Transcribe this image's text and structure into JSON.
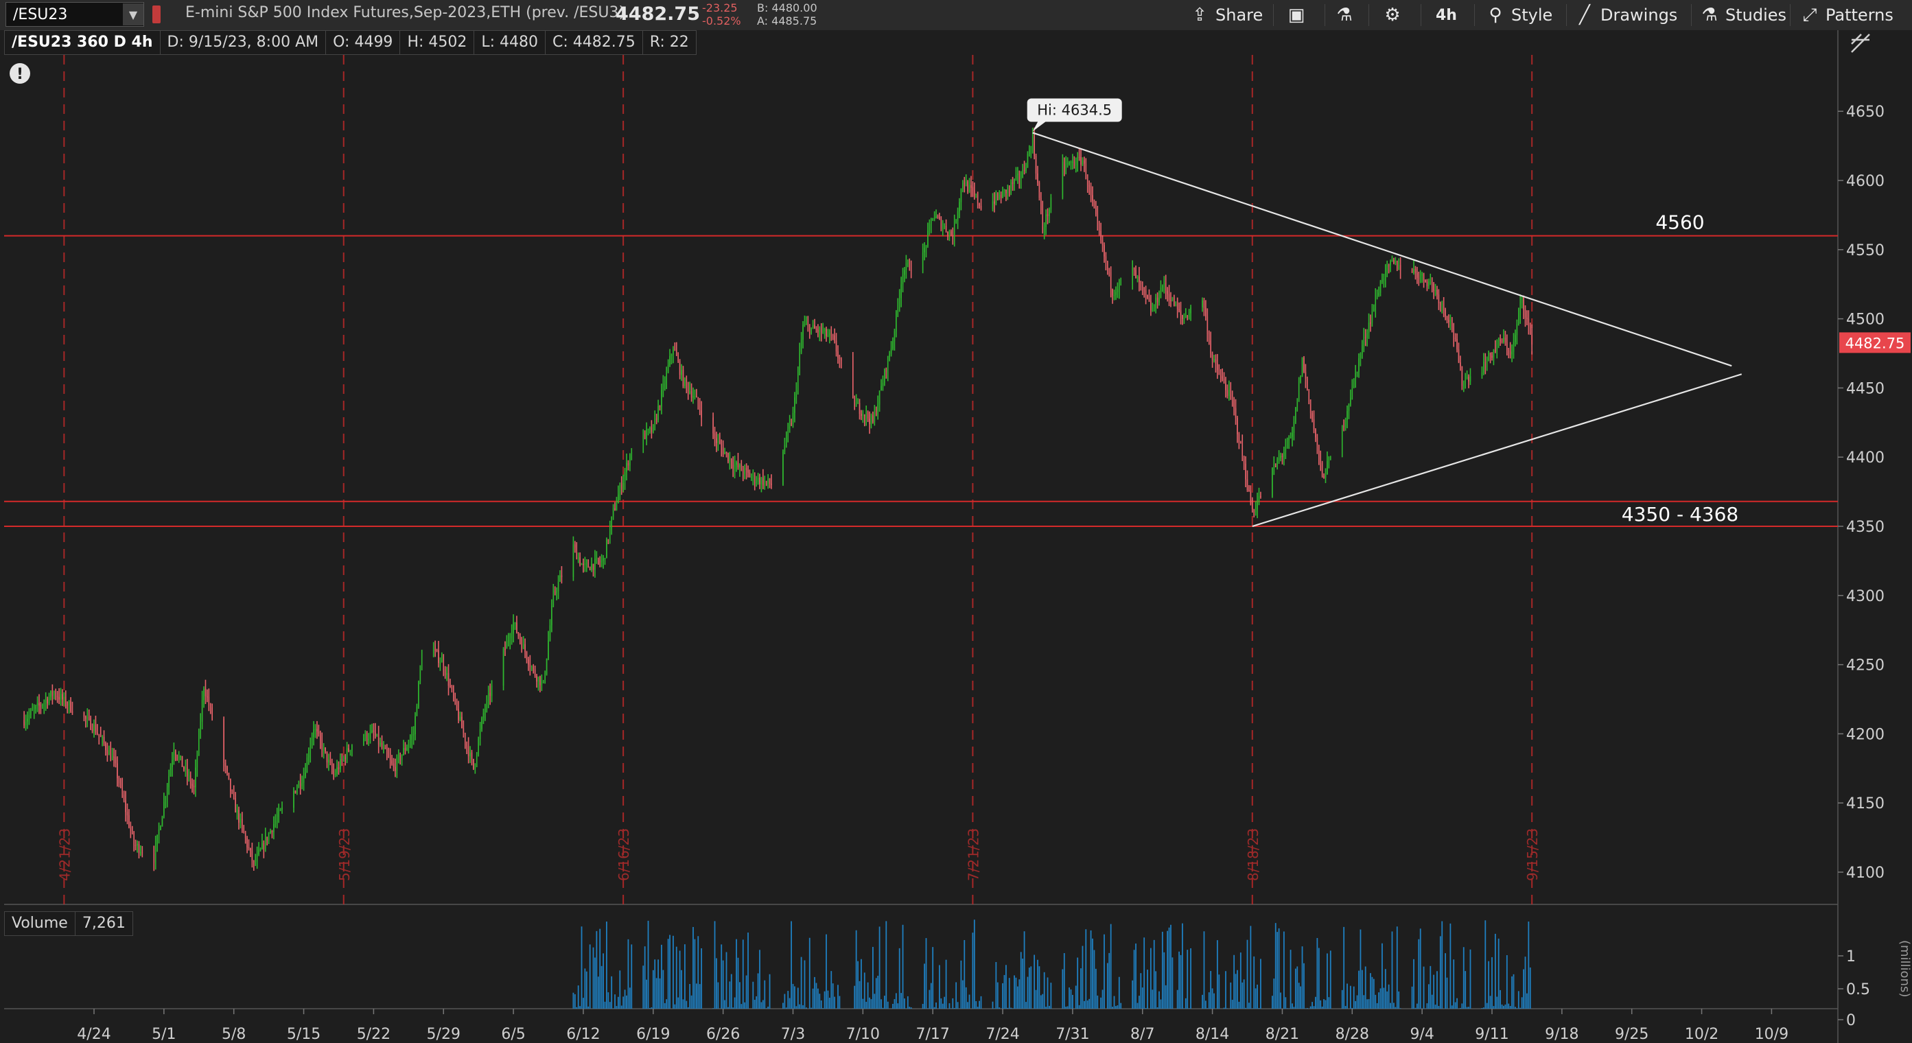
{
  "header": {
    "symbol": "/ESU23",
    "description": "E-mini S&P 500 Index Futures,Sep-2023,ETH (prev. /ESU3)",
    "last_price": "4482.75",
    "change": "-23.25",
    "change_pct": "-0.52%",
    "bid": "B: 4480.00",
    "ask": "A: 4485.75",
    "toolbar": {
      "share": "Share",
      "timeframe": "4h",
      "style": "Style",
      "drawings": "Drawings",
      "studies": "Studies",
      "patterns": "Patterns"
    }
  },
  "info_bar": {
    "title": "/ESU23 360 D 4h",
    "date": "D: 9/15/23, 8:00 AM",
    "open": "O: 4499",
    "high": "H: 4502",
    "low": "L: 4480",
    "close": "C: 4482.75",
    "range": "R: 22"
  },
  "volume_bar": {
    "label": "Volume",
    "value": "7,261"
  },
  "colors": {
    "up": "#2fb82f",
    "down": "#e8636a",
    "level": "#d42a2a",
    "trend": "#e6e6e6",
    "volume": "#1f7fc0",
    "price_tag": "#e8464c"
  },
  "chart_data": {
    "type": "candlestick",
    "ylim": [
      4075,
      4670
    ],
    "yticks": [
      4100,
      4150,
      4200,
      4250,
      4300,
      4350,
      4400,
      4450,
      4500,
      4550,
      4600,
      4650
    ],
    "xticks": [
      "4/24",
      "5/1",
      "5/8",
      "5/15",
      "5/22",
      "5/29",
      "6/5",
      "6/12",
      "6/19",
      "6/26",
      "7/3",
      "7/10",
      "7/17",
      "7/24",
      "7/31",
      "8/7",
      "8/14",
      "8/21",
      "8/28",
      "9/4",
      "9/11",
      "9/18",
      "9/25",
      "10/2",
      "10/9"
    ],
    "expiration_markers": [
      "4/21/23",
      "5/19/23",
      "6/16/23",
      "7/21/23",
      "8/18/23",
      "9/15/23"
    ],
    "horizontal_levels": [
      {
        "value": 4560,
        "label": "4560"
      },
      {
        "value": 4368,
        "label": "4350 - 4368"
      },
      {
        "value": 4350,
        "label": ""
      }
    ],
    "high_label": "Hi: 4634.5",
    "last_value": 4482.75,
    "last_label": "4482.75",
    "trendlines": [
      {
        "from": [
          "7/27",
          4634.5
        ],
        "to": [
          "10/5",
          4466
        ]
      },
      {
        "from": [
          "8/18",
          4350
        ],
        "to": [
          "10/6",
          4460
        ]
      }
    ],
    "price_path": [
      [
        "4/17",
        4210
      ],
      [
        "4/20",
        4230
      ],
      [
        "4/24",
        4205
      ],
      [
        "4/26",
        4180
      ],
      [
        "4/28",
        4120
      ],
      [
        "4/30",
        4110
      ],
      [
        "5/2",
        4190
      ],
      [
        "5/4",
        4160
      ],
      [
        "5/5",
        4235
      ],
      [
        "5/8",
        4150
      ],
      [
        "5/10",
        4105
      ],
      [
        "5/12",
        4135
      ],
      [
        "5/15",
        4170
      ],
      [
        "5/16",
        4205
      ],
      [
        "5/18",
        4170
      ],
      [
        "5/20",
        4195
      ],
      [
        "5/22",
        4200
      ],
      [
        "5/24",
        4175
      ],
      [
        "5/26",
        4200
      ],
      [
        "5/27",
        4270
      ],
      [
        "5/29",
        4250
      ],
      [
        "6/1",
        4175
      ],
      [
        "6/2",
        4215
      ],
      [
        "6/5",
        4280
      ],
      [
        "6/7",
        4245
      ],
      [
        "6/8",
        4235
      ],
      [
        "6/9",
        4300
      ],
      [
        "6/11",
        4335
      ],
      [
        "6/12",
        4320
      ],
      [
        "6/14",
        4325
      ],
      [
        "6/15",
        4360
      ],
      [
        "6/17",
        4410
      ],
      [
        "6/19",
        4420
      ],
      [
        "6/21",
        4480
      ],
      [
        "6/22",
        4455
      ],
      [
        "6/23",
        4445
      ],
      [
        "6/25",
        4415
      ],
      [
        "6/27",
        4395
      ],
      [
        "6/29",
        4385
      ],
      [
        "7/1",
        4380
      ],
      [
        "7/3",
        4430
      ],
      [
        "7/4",
        4495
      ],
      [
        "7/6",
        4490
      ],
      [
        "7/7",
        4485
      ],
      [
        "7/9",
        4440
      ],
      [
        "7/11",
        4425
      ],
      [
        "7/13",
        4485
      ],
      [
        "7/14",
        4535
      ],
      [
        "7/16",
        4545
      ],
      [
        "7/17",
        4575
      ],
      [
        "7/19",
        4560
      ],
      [
        "7/20",
        4600
      ],
      [
        "7/22",
        4580
      ],
      [
        "7/24",
        4590
      ],
      [
        "7/26",
        4605
      ],
      [
        "7/27",
        4630
      ],
      [
        "7/28",
        4565
      ],
      [
        "7/30",
        4610
      ],
      [
        "8/1",
        4615
      ],
      [
        "8/3",
        4550
      ],
      [
        "8/4",
        4520
      ],
      [
        "8/6",
        4535
      ],
      [
        "8/8",
        4505
      ],
      [
        "8/9",
        4525
      ],
      [
        "8/11",
        4500
      ],
      [
        "8/13",
        4515
      ],
      [
        "8/14",
        4470
      ],
      [
        "8/16",
        4440
      ],
      [
        "8/18",
        4360
      ],
      [
        "8/20",
        4390
      ],
      [
        "8/22",
        4415
      ],
      [
        "8/23",
        4470
      ],
      [
        "8/25",
        4385
      ],
      [
        "8/27",
        4420
      ],
      [
        "8/29",
        4480
      ],
      [
        "8/31",
        4530
      ],
      [
        "9/1",
        4540
      ],
      [
        "9/3",
        4535
      ],
      [
        "9/5",
        4525
      ],
      [
        "9/7",
        4495
      ],
      [
        "9/8",
        4455
      ],
      [
        "9/10",
        4465
      ],
      [
        "9/12",
        4485
      ],
      [
        "9/13",
        4475
      ],
      [
        "9/14",
        4515
      ],
      [
        "9/15",
        4483
      ]
    ],
    "volume_yticks": [
      "1",
      "0.5",
      "0"
    ],
    "volume_axis_label": "(millions)"
  }
}
